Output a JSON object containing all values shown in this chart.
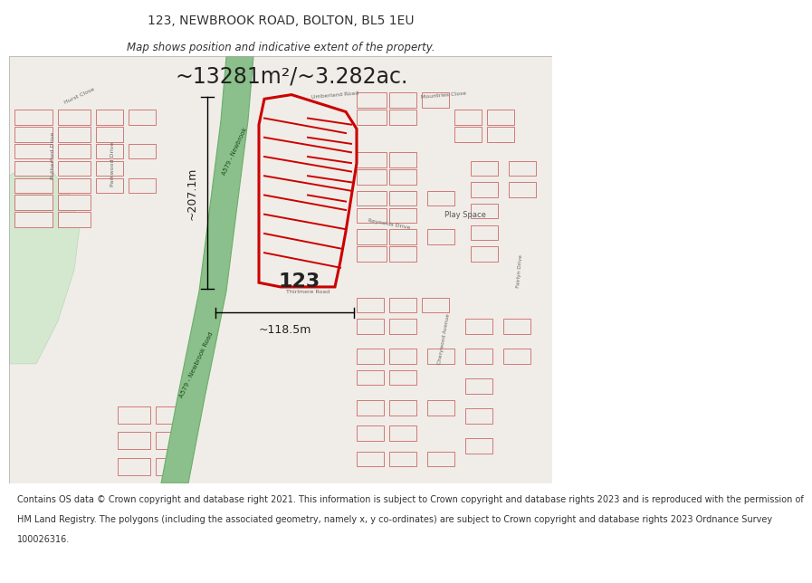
{
  "title": "123, NEWBROOK ROAD, BOLTON, BL5 1EU",
  "subtitle": "Map shows position and indicative extent of the property.",
  "area_text": "~13281m²/~3.282ac.",
  "dim1_text": "~207.1m",
  "dim2_text": "~118.5m",
  "label_123": "123",
  "footer_lines": [
    "Contains OS data © Crown copyright and database right 2021. This information is subject to Crown copyright and database rights 2023 and is reproduced with the permission of",
    "HM Land Registry. The polygons (including the associated geometry, namely x, y co-ordinates) are subject to Crown copyright and database rights 2023 Ordnance Survey",
    "100026316."
  ],
  "bg_color": "#ffffff",
  "map_bg": "#f0ede8",
  "road_green": "#8bbf8b",
  "road_outline": "#6aaf6a",
  "plot_outline": "#cc0000",
  "text_color": "#333333",
  "green_area_fill": "#d4e8d0",
  "title_fontsize": 10,
  "subtitle_fontsize": 8.5,
  "area_fontsize": 17,
  "label_fontsize": 16,
  "footer_fontsize": 7,
  "dim_fontsize": 9
}
